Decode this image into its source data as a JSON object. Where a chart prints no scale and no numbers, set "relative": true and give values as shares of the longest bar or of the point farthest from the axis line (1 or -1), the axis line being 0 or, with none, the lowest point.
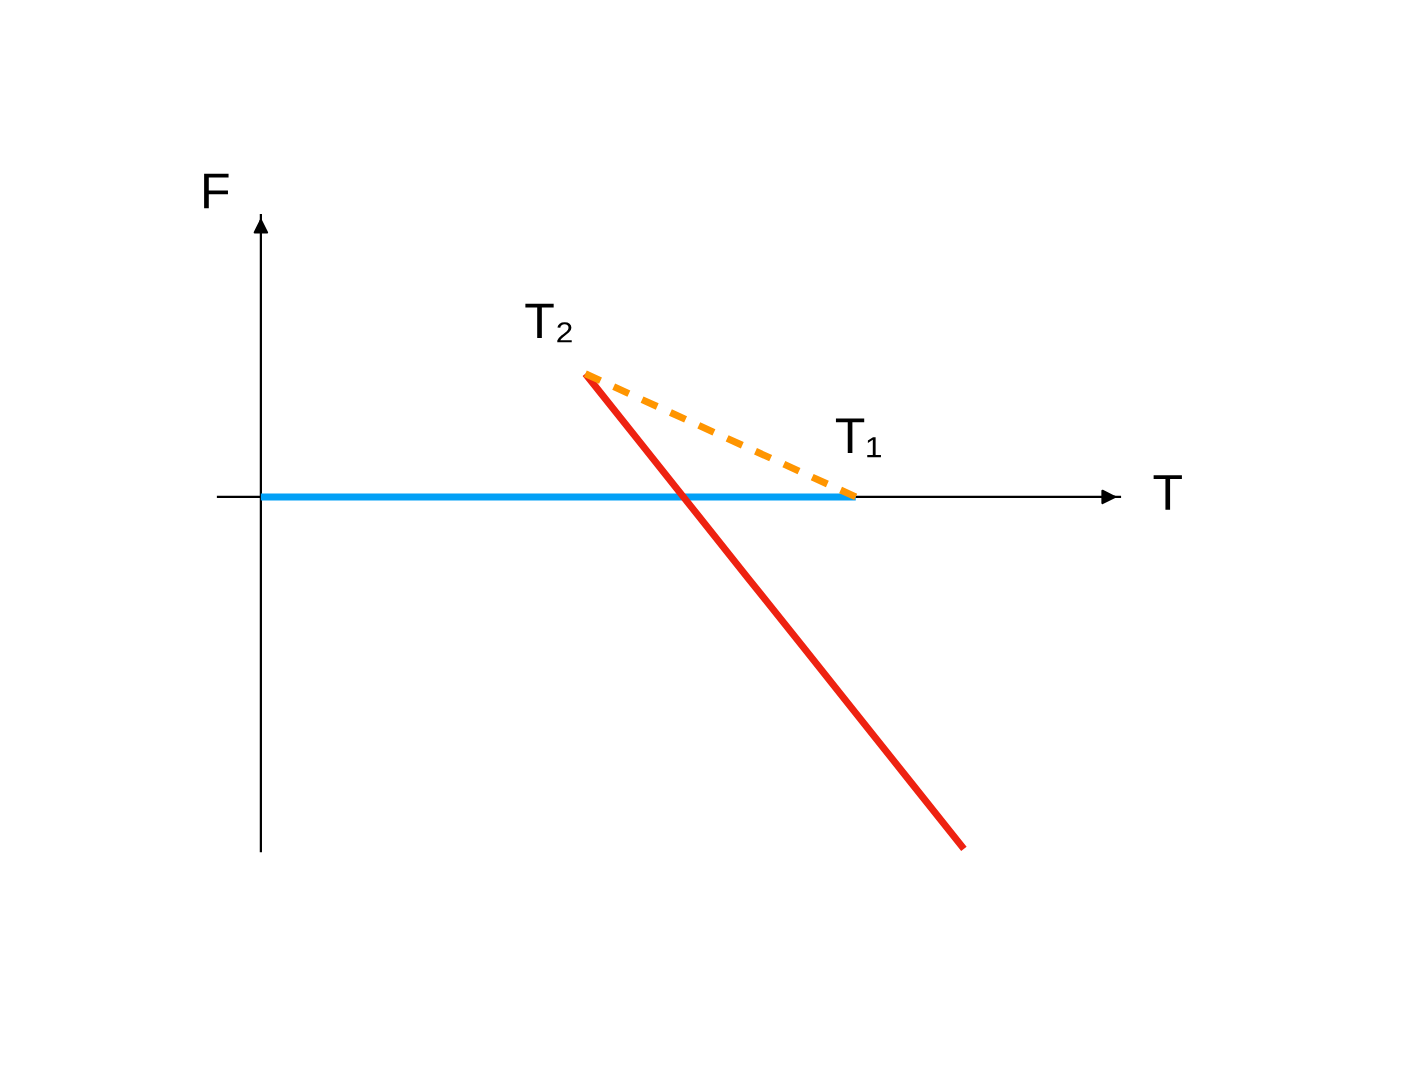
{
  "chart_data": {
    "type": "line",
    "relative": true,
    "xlabel": "T",
    "ylabel": "F",
    "categories": [
      null,
      null,
      null,
      null,
      null,
      null,
      null,
      null,
      null,
      null,
      null,
      null,
      null,
      null
    ],
    "series": [
      {
        "color": "#02a0f6",
        "values": [
          0,
          0,
          0,
          0,
          0,
          0,
          0,
          0,
          0,
          0,
          0,
          0,
          null,
          null
        ]
      },
      {
        "color": "#ee2211",
        "values": [
          null,
          null,
          null,
          null,
          null,
          null,
          0.35,
          0.157,
          -0.036,
          -0.229,
          -0.421,
          -0.614,
          -0.807,
          -1
        ]
      },
      {
        "color": "#ff9500",
        "values": [
          null,
          null,
          null,
          null,
          null,
          null,
          0.35,
          0.28,
          0.21,
          0.14,
          0.07,
          0,
          null,
          null
        ],
        "line_style": "dashed"
      }
    ],
    "annotations": [
      "T₂",
      "T₁"
    ]
  }
}
